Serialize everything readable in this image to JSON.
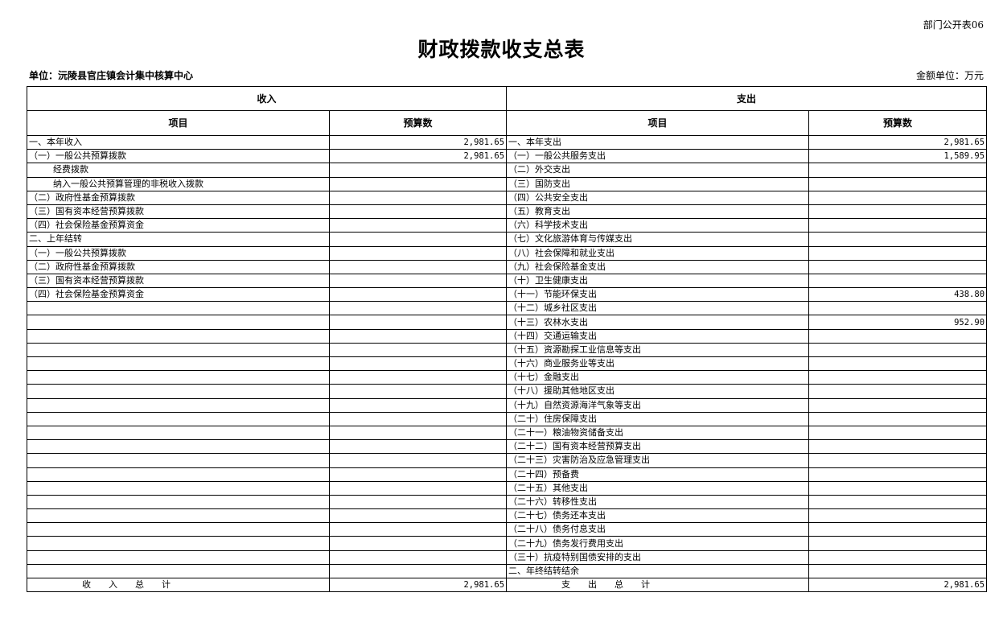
{
  "form_no": "部门公开表06",
  "title": "财政拨款收支总表",
  "unit": "单位：沅陵县官庄镇会计集中核算中心",
  "money_unit": "金额单位：万元",
  "headers": {
    "income": "收入",
    "expense": "支出",
    "item": "项目",
    "budget": "预算数"
  },
  "rows": [
    {
      "income_item": "一、本年收入",
      "income_value": "2,981.65",
      "expense_item": "一、本年支出",
      "expense_value": "2,981.65"
    },
    {
      "income_item": "（一）一般公共预算拨款",
      "income_value": "2,981.65",
      "expense_item": "（一）一般公共服务支出",
      "expense_value": "1,589.95"
    },
    {
      "income_item": "经费拨款",
      "indent": true,
      "income_value": "",
      "expense_item": "（二）外交支出",
      "expense_value": ""
    },
    {
      "income_item": "纳入一般公共预算管理的非税收入拨款",
      "indent": true,
      "income_value": "",
      "expense_item": "（三）国防支出",
      "expense_value": ""
    },
    {
      "income_item": "（二）政府性基金预算拨款",
      "income_value": "",
      "expense_item": "（四）公共安全支出",
      "expense_value": ""
    },
    {
      "income_item": "（三）国有资本经营预算拨款",
      "income_value": "",
      "expense_item": "（五）教育支出",
      "expense_value": ""
    },
    {
      "income_item": "（四）社会保险基金预算资金",
      "income_value": "",
      "expense_item": "（六）科学技术支出",
      "expense_value": ""
    },
    {
      "income_item": "二、上年结转",
      "income_value": "",
      "expense_item": "（七）文化旅游体育与传媒支出",
      "expense_value": ""
    },
    {
      "income_item": "（一）一般公共预算拨款",
      "income_value": "",
      "expense_item": "（八）社会保障和就业支出",
      "expense_value": ""
    },
    {
      "income_item": "（二）政府性基金预算拨款",
      "income_value": "",
      "expense_item": "（九）社会保险基金支出",
      "expense_value": ""
    },
    {
      "income_item": "（三）国有资本经营预算拨款",
      "income_value": "",
      "expense_item": "（十）卫生健康支出",
      "expense_value": ""
    },
    {
      "income_item": "（四）社会保险基金预算资金",
      "income_value": "",
      "expense_item": "（十一）节能环保支出",
      "expense_value": "438.80"
    },
    {
      "income_item": "",
      "income_value": "",
      "expense_item": "（十二）城乡社区支出",
      "expense_value": ""
    },
    {
      "income_item": "",
      "income_value": "",
      "expense_item": "（十三）农林水支出",
      "expense_value": "952.90"
    },
    {
      "income_item": "",
      "income_value": "",
      "expense_item": "（十四）交通运输支出",
      "expense_value": ""
    },
    {
      "income_item": "",
      "income_value": "",
      "expense_item": "（十五）资源勘探工业信息等支出",
      "expense_value": ""
    },
    {
      "income_item": "",
      "income_value": "",
      "expense_item": "（十六）商业服务业等支出",
      "expense_value": ""
    },
    {
      "income_item": "",
      "income_value": "",
      "expense_item": "（十七）金融支出",
      "expense_value": ""
    },
    {
      "income_item": "",
      "income_value": "",
      "expense_item": "（十八）援助其他地区支出",
      "expense_value": ""
    },
    {
      "income_item": "",
      "income_value": "",
      "expense_item": "（十九）自然资源海洋气象等支出",
      "expense_value": ""
    },
    {
      "income_item": "",
      "income_value": "",
      "expense_item": "（二十）住房保障支出",
      "expense_value": ""
    },
    {
      "income_item": "",
      "income_value": "",
      "expense_item": "（二十一）粮油物资储备支出",
      "expense_value": ""
    },
    {
      "income_item": "",
      "income_value": "",
      "expense_item": "（二十二）国有资本经营预算支出",
      "expense_value": ""
    },
    {
      "income_item": "",
      "income_value": "",
      "expense_item": "（二十三）灾害防治及应急管理支出",
      "expense_value": ""
    },
    {
      "income_item": "",
      "income_value": "",
      "expense_item": "（二十四）预备费",
      "expense_value": ""
    },
    {
      "income_item": "",
      "income_value": "",
      "expense_item": "（二十五）其他支出",
      "expense_value": ""
    },
    {
      "income_item": "",
      "income_value": "",
      "expense_item": "（二十六）转移性支出",
      "expense_value": ""
    },
    {
      "income_item": "",
      "income_value": "",
      "expense_item": "（二十七）债务还本支出",
      "expense_value": ""
    },
    {
      "income_item": "",
      "income_value": "",
      "expense_item": "（二十八）债务付息支出",
      "expense_value": ""
    },
    {
      "income_item": "",
      "income_value": "",
      "expense_item": "（二十九）债务发行费用支出",
      "expense_value": ""
    },
    {
      "income_item": "",
      "income_value": "",
      "expense_item": "（三十）抗疫特别国债安排的支出",
      "expense_value": ""
    },
    {
      "income_item": "",
      "income_value": "",
      "expense_item": "二、年终结转结余",
      "expense_value": ""
    }
  ],
  "totals": {
    "income_label": "收　　入　　总　　计",
    "income_value": "2,981.65",
    "expense_label": "支　　出　　总　　计",
    "expense_value": "2,981.65"
  }
}
